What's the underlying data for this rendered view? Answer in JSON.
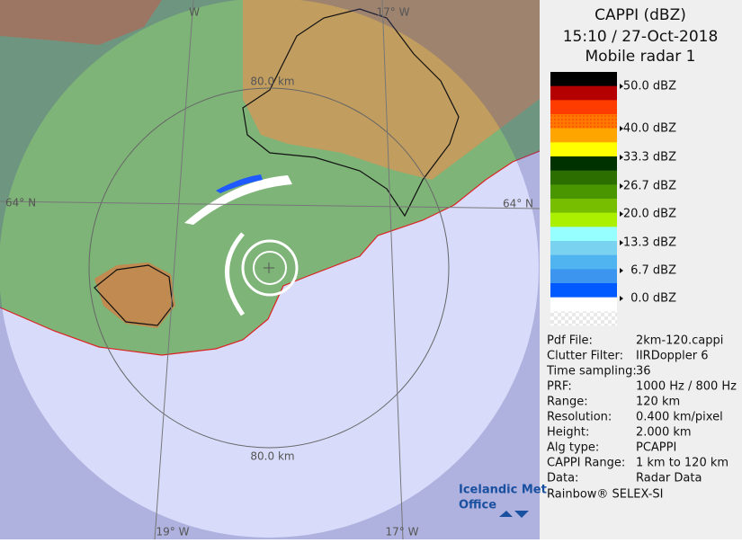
{
  "header": {
    "lines": [
      "CAPPI (dBZ)",
      "15:10 / 27-Oct-2018",
      "Mobile radar 1"
    ]
  },
  "legend": {
    "labels": [
      "50.0 dBZ",
      "40.0 dBZ",
      "33.3 dBZ",
      "26.7 dBZ",
      "20.0 dBZ",
      "13.3 dBZ",
      "6.7 dBZ",
      "0.0 dBZ"
    ]
  },
  "info": {
    "rows": [
      [
        "Pdf File:",
        "2km-120.cappi"
      ],
      [
        "Clutter Filter:",
        "IIRDoppler 6"
      ],
      [
        "Time sampling:",
        "36"
      ],
      [
        "PRF:",
        "1000 Hz / 800 Hz"
      ],
      [
        "Range:",
        "120 km"
      ],
      [
        "Resolution:",
        "0.400 km/pixel"
      ],
      [
        "Height:",
        "2.000 km"
      ],
      [
        "Alg type:",
        "PCAPPI"
      ],
      [
        "CAPPI Range:",
        "1 km to 120 km"
      ],
      [
        "Data:",
        "Radar Data"
      ]
    ],
    "footer": "Rainbow® SELEX-SI"
  },
  "map": {
    "labels": [
      "W",
      "17° W",
      "80.0 km",
      "64° N",
      "64° N",
      "80.0 km",
      "19° W",
      "17° W"
    ]
  },
  "logo": {
    "lines": [
      "Icelandic Met",
      "Office"
    ]
  }
}
